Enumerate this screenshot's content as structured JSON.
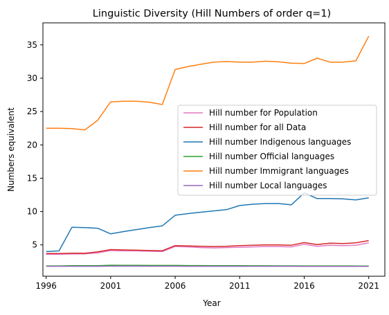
{
  "chart_data": {
    "type": "line",
    "title": "Linguistic Diversity (Hill Numbers of order q=1)",
    "xlabel": "Year",
    "ylabel": "Numbers equivalent",
    "xlim": [
      1995.75,
      2022.25
    ],
    "ylim": [
      0.3,
      38.3
    ],
    "xticks": [
      1996,
      2001,
      2006,
      2011,
      2016,
      2021
    ],
    "yticks": [
      5,
      10,
      15,
      20,
      25,
      30,
      35
    ],
    "grid": false,
    "legend_position": "center-right",
    "x": [
      1996,
      1997,
      1998,
      1999,
      2000,
      2001,
      2002,
      2003,
      2004,
      2005,
      2006,
      2007,
      2008,
      2009,
      2010,
      2011,
      2012,
      2013,
      2014,
      2015,
      2016,
      2017,
      2018,
      2019,
      2020,
      2021
    ],
    "series": [
      {
        "name": "Hill number for Population",
        "color": "#e377c2",
        "values": [
          3.6,
          3.6,
          3.65,
          3.65,
          3.8,
          4.15,
          4.1,
          4.1,
          4.05,
          4.0,
          4.75,
          4.7,
          4.6,
          4.55,
          4.6,
          4.65,
          4.7,
          4.75,
          4.75,
          4.7,
          5.1,
          4.8,
          4.95,
          4.9,
          4.95,
          5.3
        ]
      },
      {
        "name": "Hill number for all Data",
        "color": "#d62728",
        "values": [
          3.7,
          3.7,
          3.75,
          3.75,
          3.95,
          4.3,
          4.25,
          4.2,
          4.15,
          4.12,
          4.9,
          4.85,
          4.8,
          4.75,
          4.8,
          4.9,
          4.95,
          5.0,
          5.0,
          4.95,
          5.35,
          5.05,
          5.25,
          5.2,
          5.3,
          5.65
        ]
      },
      {
        "name": "Hill number Indigenous languages",
        "color": "#1f77b4",
        "values": [
          4.0,
          4.1,
          7.65,
          7.6,
          7.5,
          6.65,
          7.0,
          7.3,
          7.6,
          7.85,
          9.45,
          9.7,
          9.9,
          10.1,
          10.3,
          10.9,
          11.1,
          11.2,
          11.2,
          11.0,
          12.8,
          11.95,
          11.95,
          11.9,
          11.75,
          12.05
        ]
      },
      {
        "name": "Hill number Official languages",
        "color": "#2ca02c",
        "values": [
          1.85,
          1.85,
          1.88,
          1.88,
          1.88,
          1.95,
          1.93,
          1.93,
          1.92,
          1.92,
          1.92,
          1.9,
          1.9,
          1.89,
          1.88,
          1.88,
          1.87,
          1.87,
          1.86,
          1.86,
          1.85,
          1.85,
          1.85,
          1.85,
          1.84,
          1.84
        ]
      },
      {
        "name": "Hill number Immigrant languages",
        "color": "#ff7f0e",
        "values": [
          22.5,
          22.5,
          22.45,
          22.25,
          23.7,
          26.45,
          26.55,
          26.55,
          26.4,
          26.05,
          31.3,
          31.75,
          32.1,
          32.4,
          32.5,
          32.4,
          32.4,
          32.55,
          32.45,
          32.25,
          32.2,
          33.0,
          32.4,
          32.4,
          32.6,
          36.3
        ]
      },
      {
        "name": "Hill number Local languages",
        "color": "#9467bd",
        "values": [
          1.8,
          1.8,
          1.8,
          1.8,
          1.8,
          1.82,
          1.82,
          1.82,
          1.81,
          1.81,
          1.81,
          1.8,
          1.8,
          1.8,
          1.8,
          1.8,
          1.79,
          1.79,
          1.79,
          1.79,
          1.78,
          1.78,
          1.78,
          1.78,
          1.77,
          1.77
        ]
      }
    ]
  }
}
